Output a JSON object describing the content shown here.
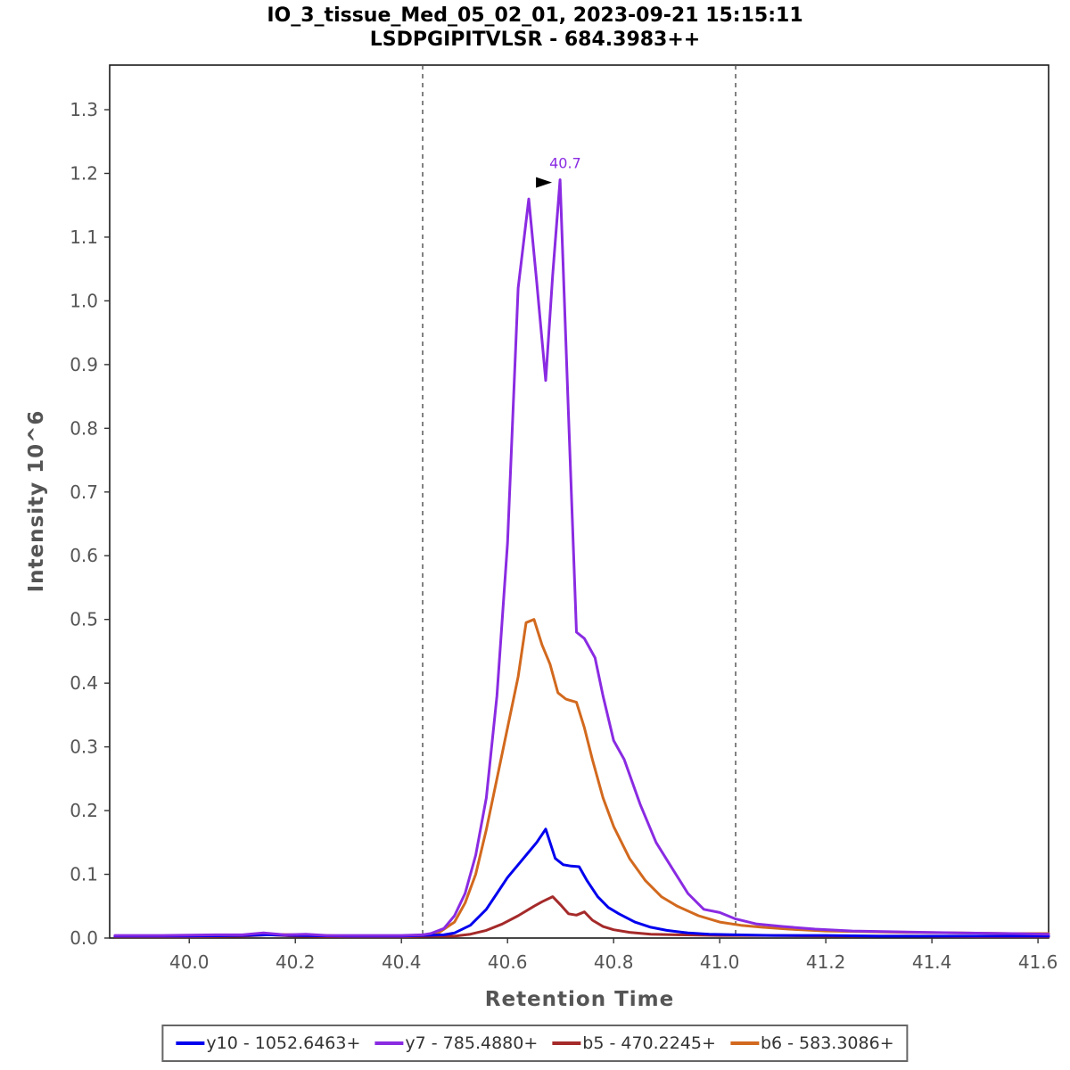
{
  "header": {
    "title_line1": "IO_3_tissue_Med_05_02_01, 2023-09-21 15:15:11",
    "title_line2": "LSDPGIPITVLSR - 684.3983++"
  },
  "legend": {
    "items": [
      {
        "id": "y10",
        "label": "y10 - 1052.6463+",
        "color": "#0000ee"
      },
      {
        "id": "y7",
        "label": "y7 - 785.4880+",
        "color": "#8a2be2"
      },
      {
        "id": "b5",
        "label": "b5 - 470.2245+",
        "color": "#a52a2a"
      },
      {
        "id": "b6",
        "label": "b6 - 583.3086+",
        "color": "#d2691e"
      }
    ]
  },
  "chart_data": {
    "type": "line",
    "title": "IO_3_tissue_Med_05_02_01, 2023-09-21 15:15:11",
    "subtitle": "LSDPGIPITVLSR - 684.3983++",
    "xlabel": "Retention Time",
    "ylabel": "Intensity 10^6",
    "xlim": [
      39.85,
      41.62
    ],
    "ylim": [
      0,
      1.37
    ],
    "x_ticks": [
      40.0,
      40.2,
      40.4,
      40.6,
      40.8,
      41.0,
      41.2,
      41.4,
      41.6
    ],
    "y_ticks": [
      0.0,
      0.1,
      0.2,
      0.3,
      0.4,
      0.5,
      0.6,
      0.7,
      0.8,
      0.9,
      1.0,
      1.1,
      1.2,
      1.3
    ],
    "grid": false,
    "legend_position": "bottom",
    "integration_boundaries": [
      40.44,
      41.03
    ],
    "peak_annotation": {
      "label": "40.7",
      "x": 40.699,
      "y": 1.19
    },
    "series": [
      {
        "id": "b5",
        "name": "b5 - 470.2245+",
        "color": "#a52a2a",
        "points": [
          [
            39.86,
            0.002
          ],
          [
            40.0,
            0.002
          ],
          [
            40.1,
            0.003
          ],
          [
            40.15,
            0.005
          ],
          [
            40.2,
            0.003
          ],
          [
            40.3,
            0.002
          ],
          [
            40.4,
            0.002
          ],
          [
            40.46,
            0.003
          ],
          [
            40.5,
            0.003
          ],
          [
            40.53,
            0.006
          ],
          [
            40.56,
            0.012
          ],
          [
            40.59,
            0.022
          ],
          [
            40.62,
            0.035
          ],
          [
            40.65,
            0.05
          ],
          [
            40.665,
            0.057
          ],
          [
            40.685,
            0.065
          ],
          [
            40.7,
            0.052
          ],
          [
            40.715,
            0.038
          ],
          [
            40.73,
            0.036
          ],
          [
            40.745,
            0.041
          ],
          [
            40.76,
            0.028
          ],
          [
            40.78,
            0.018
          ],
          [
            40.8,
            0.013
          ],
          [
            40.83,
            0.009
          ],
          [
            40.87,
            0.006
          ],
          [
            40.92,
            0.005
          ],
          [
            41.0,
            0.004
          ],
          [
            41.1,
            0.004
          ],
          [
            41.22,
            0.003
          ],
          [
            41.35,
            0.003
          ],
          [
            41.5,
            0.002
          ],
          [
            41.62,
            0.002
          ]
        ]
      },
      {
        "id": "b6",
        "name": "b6 - 583.3086+",
        "color": "#d2691e",
        "points": [
          [
            39.86,
            0.003
          ],
          [
            40.0,
            0.003
          ],
          [
            40.1,
            0.004
          ],
          [
            40.15,
            0.006
          ],
          [
            40.2,
            0.005
          ],
          [
            40.3,
            0.003
          ],
          [
            40.4,
            0.003
          ],
          [
            40.44,
            0.004
          ],
          [
            40.47,
            0.008
          ],
          [
            40.5,
            0.025
          ],
          [
            40.52,
            0.055
          ],
          [
            40.54,
            0.1
          ],
          [
            40.56,
            0.17
          ],
          [
            40.58,
            0.25
          ],
          [
            40.6,
            0.33
          ],
          [
            40.62,
            0.41
          ],
          [
            40.635,
            0.495
          ],
          [
            40.65,
            0.5
          ],
          [
            40.665,
            0.46
          ],
          [
            40.68,
            0.43
          ],
          [
            40.695,
            0.385
          ],
          [
            40.71,
            0.375
          ],
          [
            40.73,
            0.37
          ],
          [
            40.745,
            0.33
          ],
          [
            40.76,
            0.28
          ],
          [
            40.78,
            0.22
          ],
          [
            40.8,
            0.175
          ],
          [
            40.83,
            0.125
          ],
          [
            40.86,
            0.09
          ],
          [
            40.89,
            0.065
          ],
          [
            40.92,
            0.05
          ],
          [
            40.96,
            0.035
          ],
          [
            41.0,
            0.025
          ],
          [
            41.04,
            0.02
          ],
          [
            41.08,
            0.017
          ],
          [
            41.13,
            0.014
          ],
          [
            41.2,
            0.011
          ],
          [
            41.28,
            0.01
          ],
          [
            41.35,
            0.009
          ],
          [
            41.45,
            0.008
          ],
          [
            41.55,
            0.007
          ],
          [
            41.62,
            0.007
          ]
        ]
      },
      {
        "id": "y10",
        "name": "y10 - 1052.6463+",
        "color": "#0000ee",
        "points": [
          [
            39.86,
            0.003
          ],
          [
            40.0,
            0.003
          ],
          [
            40.1,
            0.004
          ],
          [
            40.15,
            0.005
          ],
          [
            40.2,
            0.004
          ],
          [
            40.3,
            0.003
          ],
          [
            40.4,
            0.003
          ],
          [
            40.48,
            0.005
          ],
          [
            40.5,
            0.008
          ],
          [
            40.53,
            0.02
          ],
          [
            40.56,
            0.045
          ],
          [
            40.58,
            0.07
          ],
          [
            40.6,
            0.095
          ],
          [
            40.62,
            0.115
          ],
          [
            40.64,
            0.135
          ],
          [
            40.655,
            0.15
          ],
          [
            40.672,
            0.171
          ],
          [
            40.69,
            0.125
          ],
          [
            40.705,
            0.115
          ],
          [
            40.72,
            0.113
          ],
          [
            40.735,
            0.112
          ],
          [
            40.75,
            0.09
          ],
          [
            40.77,
            0.065
          ],
          [
            40.79,
            0.048
          ],
          [
            40.81,
            0.038
          ],
          [
            40.84,
            0.025
          ],
          [
            40.87,
            0.017
          ],
          [
            40.9,
            0.012
          ],
          [
            40.94,
            0.008
          ],
          [
            40.98,
            0.006
          ],
          [
            41.03,
            0.005
          ],
          [
            41.1,
            0.004
          ],
          [
            41.2,
            0.004
          ],
          [
            41.3,
            0.003
          ],
          [
            41.45,
            0.003
          ],
          [
            41.62,
            0.003
          ]
        ]
      },
      {
        "id": "y7",
        "name": "y7 - 785.4880+",
        "color": "#8a2be2",
        "points": [
          [
            39.86,
            0.004
          ],
          [
            39.95,
            0.004
          ],
          [
            40.05,
            0.005
          ],
          [
            40.1,
            0.005
          ],
          [
            40.14,
            0.008
          ],
          [
            40.18,
            0.005
          ],
          [
            40.22,
            0.006
          ],
          [
            40.26,
            0.004
          ],
          [
            40.3,
            0.004
          ],
          [
            40.35,
            0.004
          ],
          [
            40.4,
            0.004
          ],
          [
            40.44,
            0.005
          ],
          [
            40.455,
            0.007
          ],
          [
            40.48,
            0.015
          ],
          [
            40.5,
            0.035
          ],
          [
            40.52,
            0.07
          ],
          [
            40.54,
            0.13
          ],
          [
            40.56,
            0.22
          ],
          [
            40.58,
            0.38
          ],
          [
            40.6,
            0.62
          ],
          [
            40.62,
            1.02
          ],
          [
            40.64,
            1.16
          ],
          [
            40.655,
            1.03
          ],
          [
            40.672,
            0.875
          ],
          [
            40.685,
            1.04
          ],
          [
            40.699,
            1.19
          ],
          [
            40.715,
            0.82
          ],
          [
            40.73,
            0.48
          ],
          [
            40.745,
            0.47
          ],
          [
            40.765,
            0.44
          ],
          [
            40.78,
            0.38
          ],
          [
            40.8,
            0.31
          ],
          [
            40.82,
            0.28
          ],
          [
            40.85,
            0.21
          ],
          [
            40.88,
            0.15
          ],
          [
            40.91,
            0.11
          ],
          [
            40.94,
            0.07
          ],
          [
            40.97,
            0.045
          ],
          [
            41.0,
            0.04
          ],
          [
            41.03,
            0.03
          ],
          [
            41.07,
            0.022
          ],
          [
            41.12,
            0.018
          ],
          [
            41.18,
            0.014
          ],
          [
            41.25,
            0.011
          ],
          [
            41.32,
            0.01
          ],
          [
            41.45,
            0.008
          ],
          [
            41.55,
            0.007
          ],
          [
            41.62,
            0.006
          ]
        ]
      }
    ]
  }
}
